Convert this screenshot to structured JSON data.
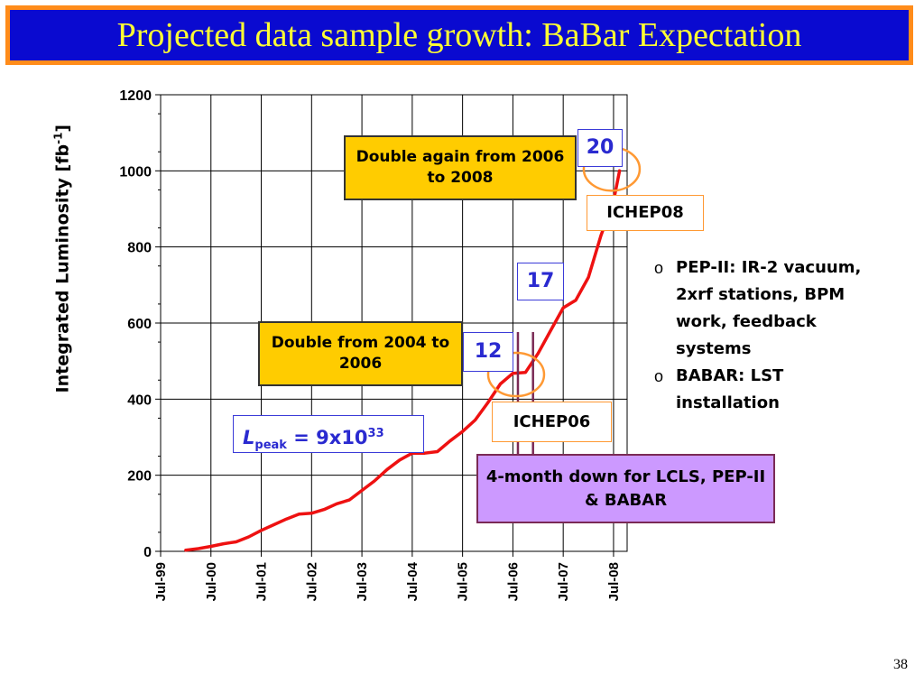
{
  "slide": {
    "title": "Projected data sample growth: BaBar Expectation",
    "page_number": "38",
    "colors": {
      "title_background": "#0a0ad0",
      "title_text": "#ffff33",
      "title_border": "#ff8c1a",
      "curve": "#ee1111",
      "callout_yellow": "#ffcc00",
      "callout_purple": "#cc99ff",
      "number_text": "#2a2ad0"
    }
  },
  "chart_data": {
    "type": "line",
    "title": "",
    "xlabel": "",
    "ylabel": "Integrated Luminosity [fb",
    "ylabel_superscript": "-1",
    "ylabel_suffix": "]",
    "ylim": [
      0,
      1200
    ],
    "yticks": [
      0,
      200,
      400,
      600,
      800,
      1000,
      1200
    ],
    "xlim": [
      1999.5,
      2008.77
    ],
    "xtick_values": [
      1999.5,
      2000.5,
      2001.5,
      2002.5,
      2003.5,
      2004.5,
      2005.5,
      2006.5,
      2007.5,
      2008.5
    ],
    "xtick_labels": [
      "Jul-99",
      "Jul-00",
      "Jul-01",
      "Jul-02",
      "Jul-03",
      "Jul-04",
      "Jul-05",
      "Jul-06",
      "Jul-07",
      "Jul-08"
    ],
    "grid": true,
    "series": [
      {
        "x": [
          2000.0,
          2000.25,
          2000.5,
          2000.75,
          2001.0,
          2001.25,
          2001.5,
          2001.75,
          2002.0,
          2002.25,
          2002.5,
          2002.75,
          2003.0,
          2003.25,
          2003.5,
          2003.75,
          2004.0,
          2004.25,
          2004.5,
          2004.75,
          2005.0,
          2005.25,
          2005.5,
          2005.75,
          2006.0,
          2006.25,
          2006.5,
          2006.75,
          2007.0,
          2007.25,
          2007.5,
          2007.75,
          2008.0,
          2008.25,
          2008.5,
          2008.62
        ],
        "y": [
          3,
          7,
          13,
          20,
          25,
          38,
          55,
          70,
          85,
          98,
          100,
          110,
          125,
          135,
          160,
          185,
          215,
          240,
          258,
          258,
          262,
          290,
          315,
          345,
          390,
          440,
          468,
          470,
          520,
          580,
          640,
          660,
          720,
          830,
          920,
          1000
        ]
      }
    ],
    "markers": [
      {
        "label": "ICHEP06",
        "x": 2006.6
      },
      {
        "label": "4-month down",
        "x": 2006.9
      }
    ],
    "circles": [
      {
        "x": 2006.6,
        "y": 460
      },
      {
        "x": 2008.5,
        "y": 1000
      }
    ],
    "annotations": {
      "double_1": "Double from 2004 to 2006",
      "double_2": "Double again from 2006 to 2008",
      "num_12": "12",
      "num_17": "17",
      "num_20": "20",
      "ichep06": "ICHEP06",
      "ichep08": "ICHEP08",
      "lpeak_symbol": "L",
      "lpeak_sub": "peak",
      "lpeak_value": " = 9x10",
      "lpeak_exp": "33",
      "down_time": "4-month down for LCLS, PEP-II & BABAR"
    }
  },
  "bullets": [
    "PEP-II: IR-2 vacuum, 2xrf stations, BPM work, feedback systems",
    "BABAR: LST installation"
  ]
}
